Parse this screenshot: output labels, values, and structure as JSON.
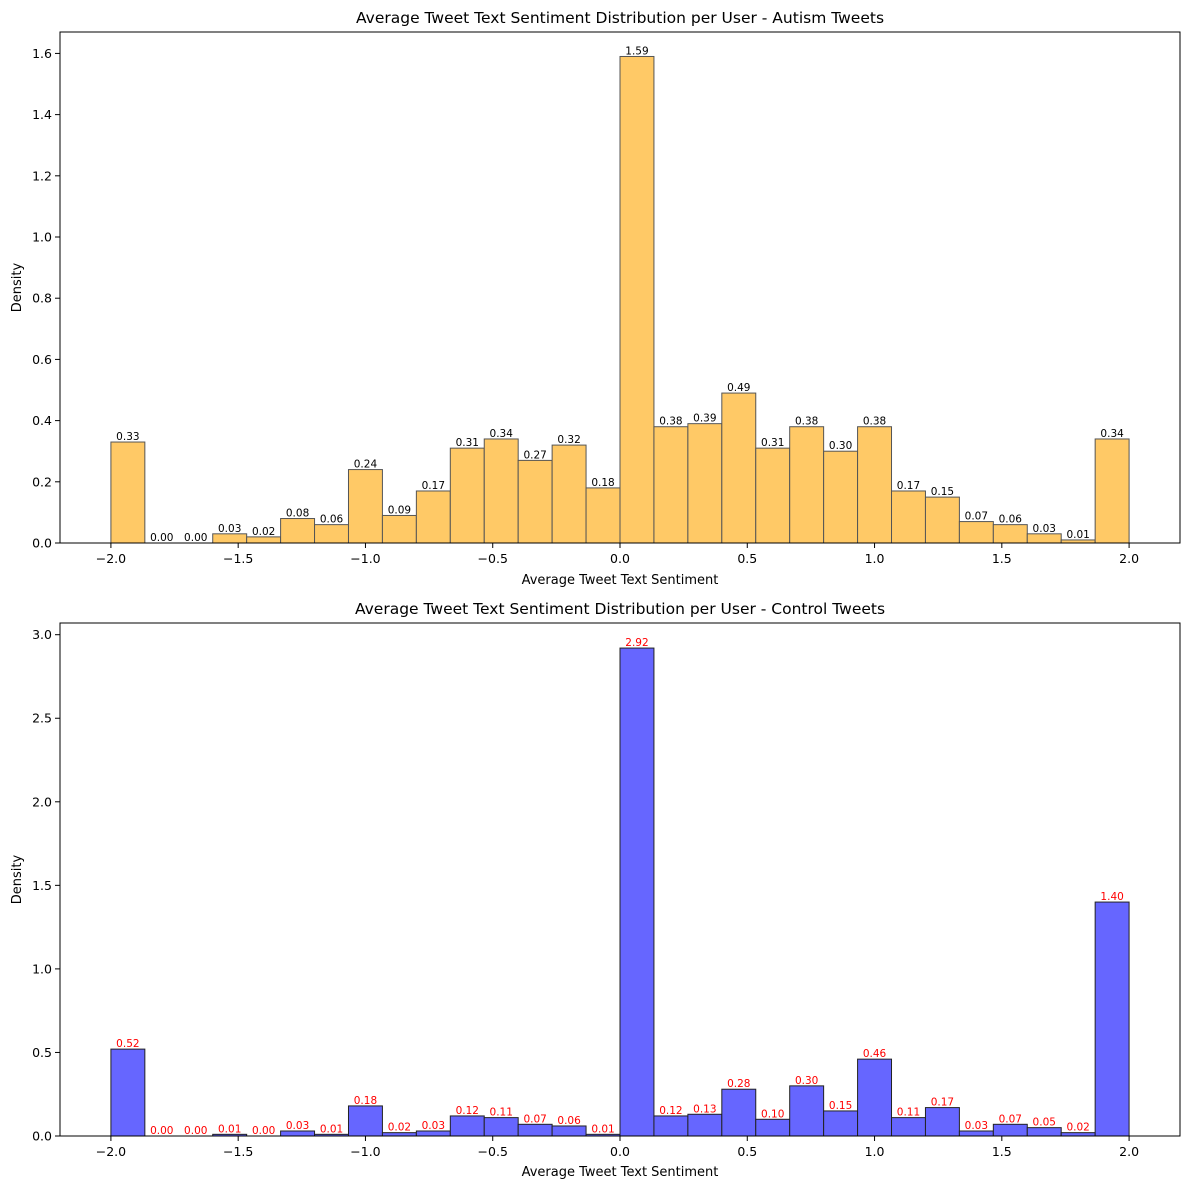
{
  "chart_data": [
    {
      "type": "bar",
      "title": "Average Tweet Text Sentiment Distribution per User - Autism Tweets",
      "xlabel": "Average Tweet Text Sentiment",
      "ylabel": "Density",
      "bin_edges_range": [
        -2.0,
        2.0
      ],
      "bins": 30,
      "xlim": [
        -2.2,
        2.2
      ],
      "ylim": [
        0,
        1.67
      ],
      "xticks": [
        -2.0,
        -1.5,
        -1.0,
        -0.5,
        0.0,
        0.5,
        1.0,
        1.5,
        2.0
      ],
      "xtick_labels": [
        "−2.0",
        "−1.5",
        "−1.0",
        "−0.5",
        "0.0",
        "0.5",
        "1.0",
        "1.5",
        "2.0"
      ],
      "yticks": [
        0.0,
        0.2,
        0.4,
        0.6,
        0.8,
        1.0,
        1.2,
        1.4,
        1.6
      ],
      "ytick_labels": [
        "0.0",
        "0.2",
        "0.4",
        "0.6",
        "0.8",
        "1.0",
        "1.2",
        "1.4",
        "1.6"
      ],
      "values": [
        0.33,
        0.0,
        0.0,
        0.03,
        0.02,
        0.08,
        0.06,
        0.24,
        0.09,
        0.17,
        0.31,
        0.34,
        0.27,
        0.32,
        0.18,
        1.59,
        0.38,
        0.39,
        0.49,
        0.31,
        0.38,
        0.3,
        0.38,
        0.17,
        0.15,
        0.07,
        0.06,
        0.03,
        0.01,
        0.34
      ],
      "value_labels": [
        "0.33",
        "0.00",
        "0.00",
        "0.03",
        "0.02",
        "0.08",
        "0.06",
        "0.24",
        "0.09",
        "0.17",
        "0.31",
        "0.34",
        "0.27",
        "0.32",
        "0.18",
        "1.59",
        "0.38",
        "0.39",
        "0.49",
        "0.31",
        "0.38",
        "0.30",
        "0.38",
        "0.17",
        "0.15",
        "0.07",
        "0.06",
        "0.03",
        "0.01",
        "0.34"
      ],
      "bar_color": "#ffc966",
      "edge_color": "#555555",
      "label_color": "#000000",
      "grid": false
    },
    {
      "type": "bar",
      "title": "Average Tweet Text Sentiment Distribution per User - Control Tweets",
      "xlabel": "Average Tweet Text Sentiment",
      "ylabel": "Density",
      "bin_edges_range": [
        -2.0,
        2.0
      ],
      "bins": 30,
      "xlim": [
        -2.2,
        2.2
      ],
      "ylim": [
        0,
        3.07
      ],
      "xticks": [
        -2.0,
        -1.5,
        -1.0,
        -0.5,
        0.0,
        0.5,
        1.0,
        1.5,
        2.0
      ],
      "xtick_labels": [
        "−2.0",
        "−1.5",
        "−1.0",
        "−0.5",
        "0.0",
        "0.5",
        "1.0",
        "1.5",
        "2.0"
      ],
      "yticks": [
        0.0,
        0.5,
        1.0,
        1.5,
        2.0,
        2.5,
        3.0
      ],
      "ytick_labels": [
        "0.0",
        "0.5",
        "1.0",
        "1.5",
        "2.0",
        "2.5",
        "3.0"
      ],
      "values": [
        0.52,
        0.0,
        0.0,
        0.01,
        0.0,
        0.03,
        0.01,
        0.18,
        0.02,
        0.03,
        0.12,
        0.11,
        0.07,
        0.06,
        0.01,
        2.92,
        0.12,
        0.13,
        0.28,
        0.1,
        0.3,
        0.15,
        0.46,
        0.11,
        0.17,
        0.03,
        0.07,
        0.05,
        0.02,
        1.4
      ],
      "value_labels": [
        "0.52",
        "0.00",
        "0.00",
        "0.01",
        "0.00",
        "0.03",
        "0.01",
        "0.18",
        "0.02",
        "0.03",
        "0.12",
        "0.11",
        "0.07",
        "0.06",
        "0.01",
        "2.92",
        "0.12",
        "0.13",
        "0.28",
        "0.10",
        "0.30",
        "0.15",
        "0.46",
        "0.11",
        "0.17",
        "0.03",
        "0.07",
        "0.05",
        "0.02",
        "1.40"
      ],
      "bar_color": "#6666ff",
      "edge_color": "#222222",
      "label_color": "#ff0000",
      "grid": false
    }
  ]
}
